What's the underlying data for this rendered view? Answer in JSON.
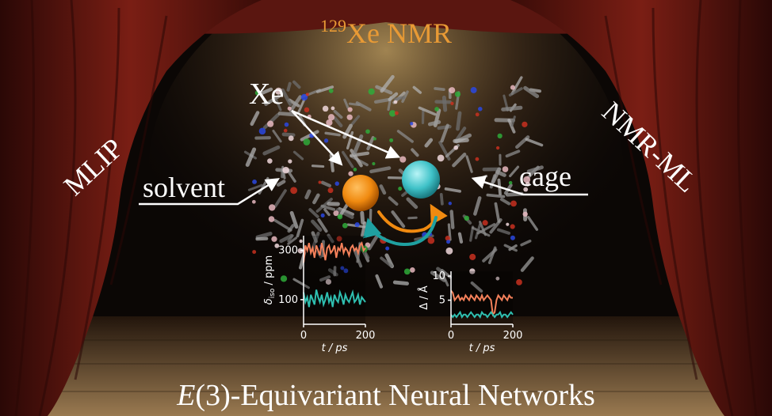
{
  "title": {
    "isotope": "129",
    "text": "Xe NMR"
  },
  "subtitle": {
    "italic": "E",
    "rest": "(3)-Equivariant Neural Networks"
  },
  "labels": {
    "xe": "Xe",
    "solvent": "solvent",
    "cage": "cage",
    "left_curtain": "MLIP",
    "right_curtain": "NMR-ML"
  },
  "colors": {
    "title": "#e89a35",
    "xe_free": "#f08a10",
    "xe_caged": "#3fc2c8",
    "series_free": "#f4805a",
    "series_caged": "#2fbfb0",
    "curtain": "#6b1a12"
  },
  "icons": [
    "stage-curtain-left",
    "stage-curtain-right",
    "spotlight",
    "molecule-network",
    "xe-sphere-orange",
    "xe-sphere-cyan",
    "exchange-arrows"
  ],
  "chart_data": [
    {
      "type": "line",
      "xlabel": "t / ps",
      "ylabel": "δiso / ppm",
      "ylabel_main": "δ",
      "ylabel_sub": "iso",
      "ylabel_unit": " / ppm",
      "xticks": [
        0,
        200
      ],
      "yticks": [
        100,
        300
      ],
      "xlim": [
        0,
        200
      ],
      "ylim": [
        0,
        360
      ],
      "series": [
        {
          "color": "orange",
          "values": [
            250,
            320,
            300,
            330,
            290,
            310,
            270,
            320,
            300,
            280,
            330,
            300,
            260,
            310,
            320,
            290,
            300,
            320,
            270,
            310,
            300,
            330,
            290,
            310,
            300,
            280,
            310,
            320,
            300,
            310,
            290,
            320,
            330,
            300,
            310
          ]
        },
        {
          "color": "teal",
          "values": [
            130,
            90,
            110,
            70,
            120,
            100,
            80,
            140,
            110,
            90,
            120,
            80,
            100,
            130,
            90,
            110,
            70,
            120,
            100,
            90,
            130,
            110,
            80,
            120,
            100,
            90,
            110,
            130,
            90,
            100,
            120,
            80,
            110,
            100,
            90
          ]
        }
      ]
    },
    {
      "type": "line",
      "xlabel": "t / ps",
      "ylabel": "Δ / Å",
      "xticks": [
        0,
        200
      ],
      "yticks": [
        5,
        10
      ],
      "xlim": [
        0,
        200
      ],
      "ylim": [
        0,
        11
      ],
      "series": [
        {
          "color": "orange",
          "values": [
            7,
            6.5,
            5,
            5.5,
            6,
            5,
            5.5,
            5,
            6,
            5.5,
            5,
            6,
            5.5,
            5,
            6,
            5.5,
            5,
            6,
            5,
            5.5,
            6,
            5.5,
            5,
            2,
            2.5,
            5,
            6,
            5.5,
            5,
            6,
            5.5,
            5,
            6,
            5.5,
            5.5
          ]
        },
        {
          "color": "teal",
          "values": [
            2,
            1.5,
            2,
            1.5,
            2,
            2.5,
            1.5,
            2,
            2,
            1.5,
            2,
            2.5,
            2,
            1.5,
            2,
            2,
            1.5,
            2.5,
            2,
            2,
            1.5,
            2,
            2.5,
            2,
            1.5,
            2,
            2,
            2.5,
            1.5,
            2,
            2,
            1.5,
            2,
            2.5,
            2
          ]
        }
      ]
    }
  ]
}
